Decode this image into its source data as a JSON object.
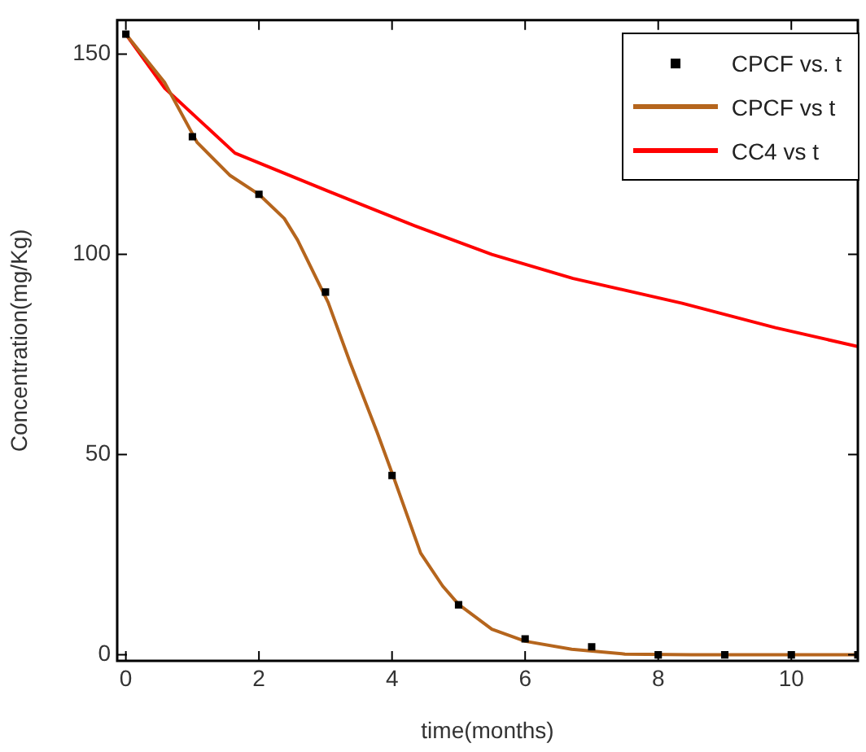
{
  "chart_data": {
    "type": "line",
    "xlabel": "time(months)",
    "ylabel": "Concentration(mg/Kg)",
    "xlim": [
      -0.13,
      11
    ],
    "xticks": [
      0,
      2,
      4,
      6,
      8,
      10
    ],
    "ylim": [
      -1.5,
      158.5
    ],
    "yticks": [
      0,
      50,
      100,
      150
    ],
    "grid": false,
    "legend": "top right",
    "line_style": "solid",
    "series": [
      {
        "name": "CPCF vs. t",
        "type": "scatter",
        "marker": "square",
        "color": "#000000",
        "x": [
          0,
          1,
          2,
          3,
          4,
          5,
          6,
          7,
          8,
          9,
          10,
          11
        ],
        "values": [
          155,
          129.4,
          115,
          90.6,
          44.8,
          12.5,
          4,
          2,
          0,
          0,
          0,
          0
        ]
      },
      {
        "name": "CPCF vs t",
        "marker": "none",
        "color": "#b5651d",
        "x": [
          0,
          0.58,
          1.07,
          1.56,
          2,
          2.38,
          2.58,
          3.04,
          3.37,
          3.78,
          4.02,
          4.43,
          4.76,
          5,
          5.5,
          6,
          6.7,
          7.5,
          8.5,
          9.5,
          11
        ],
        "values": [
          155,
          143,
          128,
          119.8,
          115,
          109,
          103.6,
          88,
          73,
          55.4,
          44.5,
          25.4,
          17.2,
          12.6,
          6.4,
          3.4,
          1.4,
          0.2,
          0,
          0,
          0
        ]
      },
      {
        "name": "CC4 vs t",
        "marker": "none",
        "color": "#ff0000",
        "x": [
          0,
          0.58,
          1.64,
          3.04,
          4.27,
          5.5,
          6.72,
          8.36,
          9.76,
          11
        ],
        "values": [
          155,
          141.6,
          125.3,
          115.8,
          107.6,
          100,
          94,
          87.8,
          81.7,
          77
        ]
      }
    ]
  }
}
